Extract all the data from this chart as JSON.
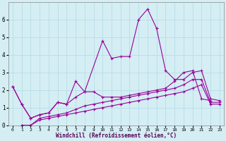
{
  "title": "",
  "xlabel": "Windchill (Refroidissement éolien,°C)",
  "background_color": "#d4eef4",
  "grid_color": "#b8dde8",
  "line_color": "#990099",
  "xlim": [
    -0.5,
    23.5
  ],
  "ylim": [
    0,
    7
  ],
  "xticks": [
    0,
    1,
    2,
    3,
    4,
    5,
    6,
    7,
    8,
    9,
    10,
    11,
    12,
    13,
    14,
    15,
    16,
    17,
    18,
    19,
    20,
    21,
    22,
    23
  ],
  "yticks": [
    0,
    1,
    2,
    3,
    4,
    5,
    6
  ],
  "series": [
    [
      2.2,
      1.2,
      0.4,
      0.6,
      0.7,
      1.3,
      1.2,
      1.6,
      1.9,
      4.8,
      3.8,
      3.9,
      3.9,
      6.0,
      6.6,
      5.5,
      3.1,
      2.6,
      2.6,
      3.0,
      3.1,
      1.5,
      1.4
    ],
    [
      2.2,
      1.2,
      0.4,
      0.6,
      0.7,
      1.3,
      1.2,
      2.5,
      1.9,
      1.9,
      1.6,
      1.6,
      1.6,
      1.7,
      1.8,
      1.9,
      2.0,
      2.1,
      2.5,
      3.0,
      3.1,
      1.5,
      1.4
    ],
    [
      0.0,
      0.0,
      0.4,
      0.5,
      0.6,
      0.7,
      0.9,
      1.1,
      1.2,
      1.3,
      1.4,
      1.5,
      1.6,
      1.7,
      1.8,
      1.9,
      2.0,
      2.1,
      2.3,
      2.6,
      2.6,
      1.3,
      1.3
    ],
    [
      0.0,
      0.0,
      0.3,
      0.4,
      0.5,
      0.6,
      0.7,
      0.8,
      0.9,
      1.0,
      1.1,
      1.2,
      1.3,
      1.4,
      1.5,
      1.6,
      1.7,
      1.8,
      1.9,
      2.1,
      2.3,
      1.2,
      1.2
    ]
  ],
  "series_x": [
    [
      0,
      1,
      2,
      3,
      4,
      5,
      6,
      7,
      8,
      10,
      11,
      12,
      13,
      14,
      15,
      16,
      17,
      18,
      19,
      20,
      21,
      22,
      23
    ],
    [
      0,
      1,
      2,
      3,
      4,
      5,
      6,
      7,
      8,
      9,
      10,
      11,
      12,
      13,
      14,
      15,
      16,
      17,
      18,
      19,
      20,
      21,
      22
    ],
    [
      1,
      2,
      3,
      4,
      5,
      6,
      7,
      8,
      9,
      10,
      11,
      12,
      13,
      14,
      15,
      16,
      17,
      18,
      19,
      20,
      21,
      22,
      23
    ],
    [
      1,
      2,
      3,
      4,
      5,
      6,
      7,
      8,
      9,
      10,
      11,
      12,
      13,
      14,
      15,
      16,
      17,
      18,
      19,
      20,
      21,
      22,
      23
    ]
  ]
}
